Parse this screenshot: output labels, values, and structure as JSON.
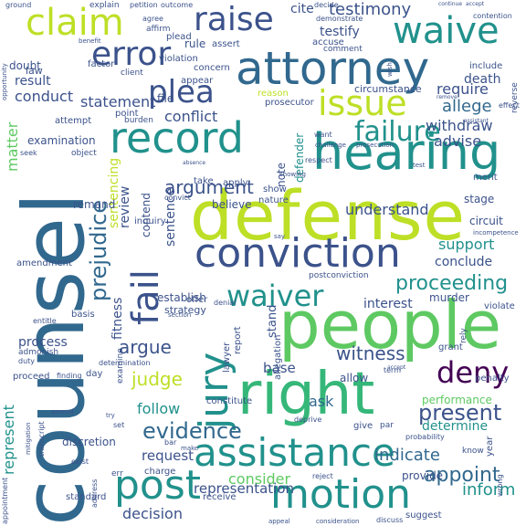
{
  "palette": {
    "background": "#ffffff",
    "dark_purple": "#440154",
    "indigo": "#3b528b",
    "blue": "#31688e",
    "teal": "#21918c",
    "sea_green": "#35b779",
    "green": "#5ec962",
    "lime": "#90d743",
    "yellow_green": "#bddf26"
  },
  "words": [
    "counsel",
    "defense",
    "people",
    "right",
    "attorney",
    "hearing",
    "conviction",
    "assistance",
    "motion",
    "post",
    "record",
    "error",
    "claim",
    "raise",
    "waive",
    "plea",
    "issue",
    "fail",
    "jury",
    "deny",
    "waiver",
    "failure",
    "prejudice",
    "argument",
    "proceeding",
    "evidence",
    "present",
    "appoint",
    "testimony",
    "judge",
    "argue",
    "witness",
    "representation",
    "consider",
    "indicate",
    "conduct",
    "result",
    "statement",
    "allege",
    "withdraw",
    "advise",
    "require",
    "conflict",
    "review",
    "sentence",
    "sentencing",
    "fitness",
    "represent",
    "matter",
    "decision",
    "request",
    "inform",
    "understand",
    "support",
    "conclude",
    "establish",
    "strategy",
    "interest",
    "performance",
    "determine",
    "follow",
    "testify",
    "death",
    "circumstance",
    "believe",
    "contend",
    "remand",
    "ask",
    "stand",
    "base",
    "process",
    "defender",
    "note",
    "examination",
    "doubt",
    "law",
    "cite",
    "explain",
    "petition",
    "outcome",
    "decide",
    "agree",
    "affirm",
    "demonstrate",
    "contention",
    "plead",
    "rule",
    "assert",
    "accuse",
    "comment",
    "include",
    "violation",
    "appear",
    "factor",
    "client",
    "concern",
    "reason",
    "prosecutor",
    "file",
    "point",
    "burden",
    "attempt",
    "seek",
    "object",
    "inquiry",
    "amendment",
    "take",
    "apply",
    "show",
    "nature",
    "stage",
    "circuit",
    "respect",
    "effect",
    "merit",
    "incompetence",
    "postconviction",
    "murder",
    "violate",
    "rely",
    "grant",
    "penalty",
    "allow",
    "report",
    "lawyer",
    "allegation",
    "offer",
    "denial",
    "examine",
    "basis",
    "section",
    "entitle",
    "admonish",
    "duty",
    "finding",
    "day",
    "determination",
    "proceed",
    "constitute",
    "deprive",
    "give",
    "par",
    "term",
    "know",
    "year",
    "probability",
    "charge",
    "bar",
    "make",
    "exist",
    "standard",
    "err",
    "receive",
    "reject",
    "provide",
    "suggest",
    "discuss",
    "discretion",
    "transcript",
    "mitigation",
    "set",
    "try",
    "amend",
    "address",
    "appointment",
    "wrong",
    "ground",
    "opportunity",
    "benefit",
    "wish",
    "reverse",
    "remove",
    "want",
    "challenge",
    "prosecution",
    "convict",
    "test",
    "say",
    "accept",
    "assistant",
    "showing",
    "continue",
    "accept",
    "absence",
    "consideration",
    "appeal"
  ]
}
